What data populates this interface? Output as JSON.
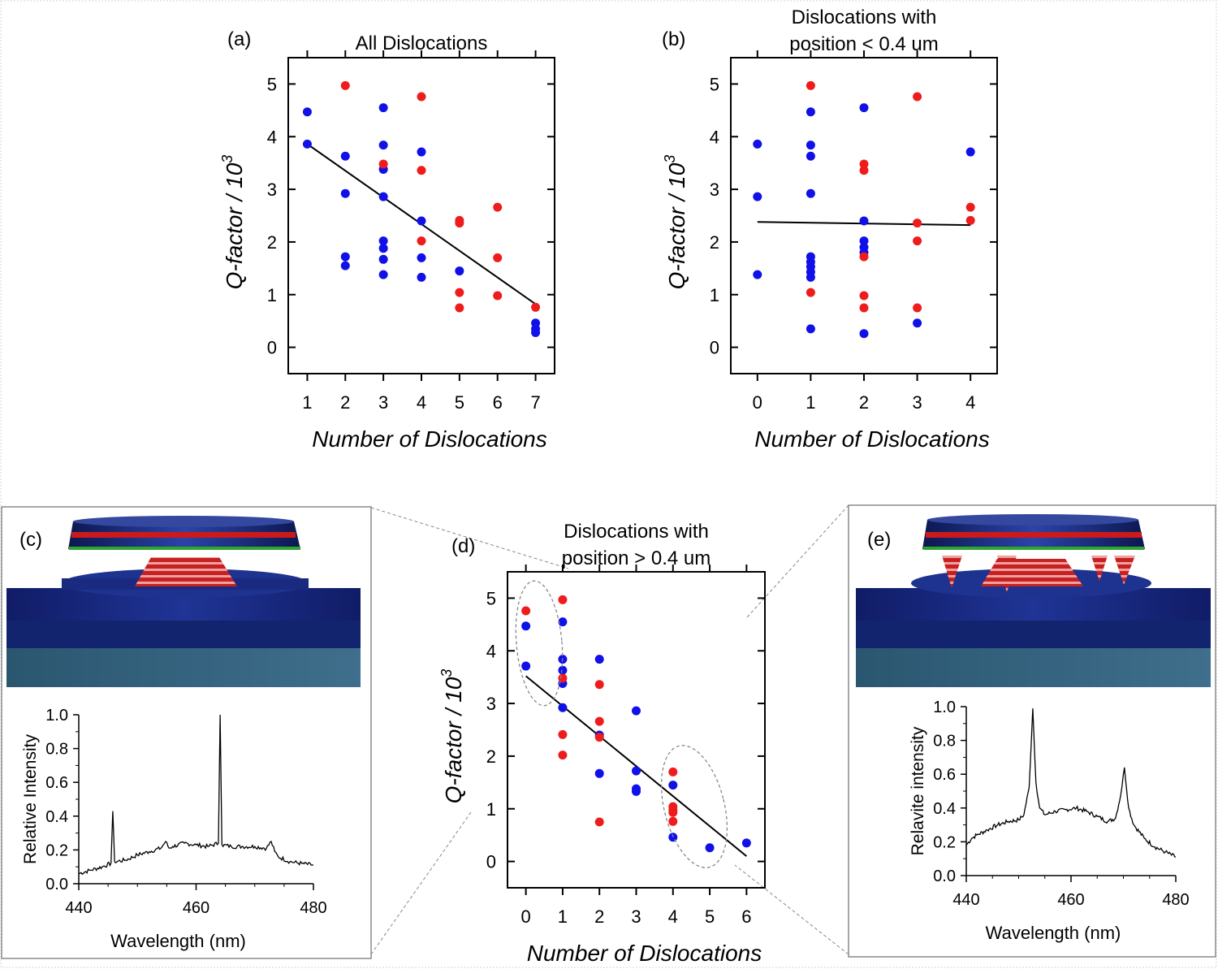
{
  "colors": {
    "blue": "#1010e8",
    "red": "#ee1c1c",
    "line": "#000000",
    "panel_border": "#8a8a8a"
  },
  "panels": {
    "a": {
      "letter": "(a)"
    },
    "b": {
      "letter": "(b)"
    },
    "c": {
      "letter": "(c)"
    },
    "d": {
      "letter": "(d)"
    },
    "e": {
      "letter": "(e)"
    }
  },
  "chart_data": [
    {
      "id": "a",
      "type": "scatter",
      "title": "All Dislocations",
      "xlabel": "Number of Dislocations",
      "ylabel": "Q-factor / 10",
      "ylabel_exp": "3",
      "xlim": [
        0.5,
        7.5
      ],
      "ylim": [
        -0.5,
        5.5
      ],
      "xticks": [
        1,
        2,
        3,
        4,
        5,
        6,
        7
      ],
      "yticks": [
        0,
        1,
        2,
        3,
        4,
        5
      ],
      "series": [
        {
          "color": "blue",
          "points": [
            [
              1,
              4.47
            ],
            [
              1,
              3.86
            ],
            [
              2,
              3.63
            ],
            [
              2,
              2.92
            ],
            [
              2,
              1.72
            ],
            [
              2,
              1.55
            ],
            [
              3,
              4.55
            ],
            [
              3,
              3.84
            ],
            [
              3,
              3.38
            ],
            [
              3,
              2.86
            ],
            [
              3,
              2.02
            ],
            [
              3,
              1.88
            ],
            [
              3,
              1.67
            ],
            [
              3,
              1.38
            ],
            [
              4,
              3.71
            ],
            [
              4,
              2.4
            ],
            [
              4,
              1.7
            ],
            [
              4,
              1.33
            ],
            [
              5,
              1.45
            ],
            [
              7,
              0.46
            ],
            [
              7,
              0.35
            ],
            [
              7,
              0.28
            ]
          ]
        },
        {
          "color": "red",
          "points": [
            [
              2,
              4.97
            ],
            [
              3,
              3.48
            ],
            [
              4,
              4.76
            ],
            [
              4,
              3.36
            ],
            [
              4,
              2.02
            ],
            [
              5,
              2.41
            ],
            [
              5,
              2.36
            ],
            [
              5,
              1.04
            ],
            [
              5,
              0.75
            ],
            [
              6,
              2.66
            ],
            [
              6,
              1.7
            ],
            [
              6,
              0.98
            ],
            [
              7,
              0.76
            ]
          ]
        }
      ],
      "fit": [
        [
          1,
          3.86
        ],
        [
          7,
          0.82
        ]
      ]
    },
    {
      "id": "b",
      "type": "scatter",
      "title": [
        "Dislocations with",
        "position < 0.4 um"
      ],
      "xlabel": "Number of Dislocations",
      "ylabel": "Q-factor / 10",
      "ylabel_exp": "3",
      "xlim": [
        -0.5,
        4.5
      ],
      "ylim": [
        -0.5,
        5.5
      ],
      "xticks": [
        0,
        1,
        2,
        3,
        4
      ],
      "yticks": [
        0,
        1,
        2,
        3,
        4,
        5
      ],
      "series": [
        {
          "color": "blue",
          "points": [
            [
              0,
              3.86
            ],
            [
              0,
              2.86
            ],
            [
              0,
              1.38
            ],
            [
              1,
              4.47
            ],
            [
              1,
              3.84
            ],
            [
              1,
              3.63
            ],
            [
              1,
              2.92
            ],
            [
              1,
              1.72
            ],
            [
              1,
              1.62
            ],
            [
              1,
              1.53
            ],
            [
              1,
              1.43
            ],
            [
              1,
              1.33
            ],
            [
              1,
              0.35
            ],
            [
              2,
              4.55
            ],
            [
              2,
              2.4
            ],
            [
              2,
              2.02
            ],
            [
              2,
              1.9
            ],
            [
              2,
              1.8
            ],
            [
              2,
              0.26
            ],
            [
              3,
              0.46
            ],
            [
              4,
              3.71
            ]
          ]
        },
        {
          "color": "red",
          "points": [
            [
              1,
              4.97
            ],
            [
              1,
              1.04
            ],
            [
              2,
              3.48
            ],
            [
              2,
              3.36
            ],
            [
              2,
              1.72
            ],
            [
              2,
              0.98
            ],
            [
              2,
              0.75
            ],
            [
              3,
              4.76
            ],
            [
              3,
              2.36
            ],
            [
              3,
              2.02
            ],
            [
              3,
              0.75
            ],
            [
              4,
              2.66
            ],
            [
              4,
              2.41
            ]
          ]
        }
      ],
      "fit": [
        [
          0,
          2.38
        ],
        [
          4,
          2.32
        ]
      ]
    },
    {
      "id": "c",
      "type": "line",
      "xlabel": "Wavelength (nm)",
      "ylabel": "Relative Intensity",
      "xlim": [
        440,
        480
      ],
      "ylim": [
        0,
        1.0
      ],
      "xticks": [
        440,
        460,
        480
      ],
      "yticks": [
        "0.0",
        "0.2",
        "0.4",
        "0.6",
        "0.8",
        "1.0"
      ],
      "series": [
        {
          "color": "line",
          "x": [
            440,
            442,
            444,
            445.5,
            445.8,
            446.1,
            448,
            450,
            452,
            454,
            454.8,
            455.4,
            456,
            458,
            460,
            462,
            463.8,
            464.1,
            464.4,
            466,
            468,
            470,
            472,
            472.8,
            473.4,
            474,
            476,
            478,
            480
          ],
          "y": [
            0.06,
            0.08,
            0.1,
            0.12,
            0.43,
            0.13,
            0.14,
            0.17,
            0.19,
            0.21,
            0.25,
            0.21,
            0.22,
            0.24,
            0.23,
            0.22,
            0.24,
            1.0,
            0.23,
            0.22,
            0.22,
            0.22,
            0.21,
            0.25,
            0.19,
            0.16,
            0.13,
            0.12,
            0.11
          ]
        }
      ]
    },
    {
      "id": "d",
      "type": "scatter",
      "title": [
        "Dislocations with",
        "position > 0.4 um"
      ],
      "xlabel": "Number of Dislocations",
      "ylabel": "Q-factor / 10",
      "ylabel_exp": "3",
      "xlim": [
        -0.5,
        6.5
      ],
      "ylim": [
        -0.5,
        5.5
      ],
      "xticks": [
        0,
        1,
        2,
        3,
        4,
        5,
        6
      ],
      "yticks": [
        0,
        1,
        2,
        3,
        4,
        5
      ],
      "series": [
        {
          "color": "blue",
          "points": [
            [
              0,
              4.47
            ],
            [
              0,
              3.71
            ],
            [
              1,
              4.55
            ],
            [
              1,
              3.84
            ],
            [
              1,
              3.63
            ],
            [
              1,
              3.38
            ],
            [
              1,
              2.92
            ],
            [
              2,
              3.84
            ],
            [
              2,
              2.4
            ],
            [
              2,
              1.67
            ],
            [
              3,
              2.86
            ],
            [
              3,
              1.72
            ],
            [
              3,
              1.38
            ],
            [
              3,
              1.33
            ],
            [
              4,
              1.45
            ],
            [
              4,
              0.46
            ],
            [
              5,
              0.26
            ],
            [
              6,
              0.35
            ]
          ]
        },
        {
          "color": "red",
          "points": [
            [
              0,
              4.76
            ],
            [
              1,
              4.97
            ],
            [
              1,
              3.48
            ],
            [
              1,
              2.41
            ],
            [
              1,
              2.02
            ],
            [
              2,
              3.36
            ],
            [
              2,
              2.66
            ],
            [
              2,
              2.36
            ],
            [
              2,
              0.75
            ],
            [
              4,
              1.7
            ],
            [
              4,
              1.04
            ],
            [
              4,
              0.98
            ],
            [
              4,
              0.93
            ],
            [
              4,
              0.76
            ]
          ]
        }
      ],
      "fit": [
        [
          0,
          3.52
        ],
        [
          6,
          0.1
        ]
      ]
    },
    {
      "id": "e",
      "type": "line",
      "xlabel": "Wavelength (nm)",
      "ylabel": "Relavite intensity",
      "xlim": [
        440,
        480
      ],
      "ylim": [
        0,
        1.0
      ],
      "xticks": [
        440,
        460,
        480
      ],
      "yticks": [
        "0.0",
        "0.2",
        "0.4",
        "0.6",
        "0.8",
        "1.0"
      ],
      "series": [
        {
          "color": "line",
          "x": [
            440,
            441,
            442,
            444,
            446,
            448,
            450,
            451,
            452,
            452.7,
            453.3,
            454,
            455,
            457,
            459,
            461,
            463,
            465,
            467,
            468.5,
            469.5,
            470.2,
            471,
            472,
            474,
            476,
            478,
            480
          ],
          "y": [
            0.18,
            0.22,
            0.24,
            0.27,
            0.3,
            0.32,
            0.33,
            0.36,
            0.52,
            0.99,
            0.55,
            0.4,
            0.36,
            0.38,
            0.39,
            0.4,
            0.38,
            0.35,
            0.32,
            0.34,
            0.48,
            0.64,
            0.4,
            0.3,
            0.22,
            0.17,
            0.14,
            0.11
          ]
        }
      ]
    }
  ]
}
